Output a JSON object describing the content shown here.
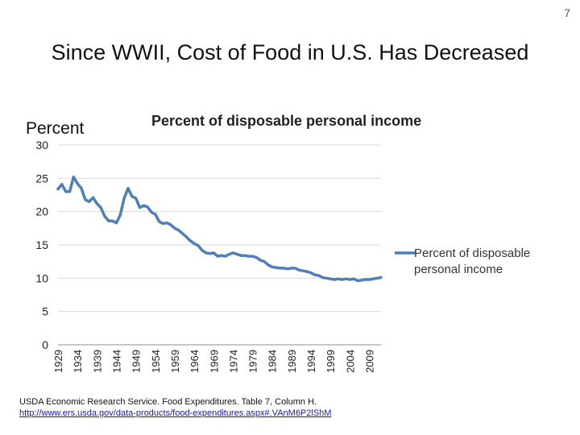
{
  "page_number": "7",
  "slide_title": "Since WWII, Cost of Food in U.S. Has Decreased",
  "y_unit_label": "Percent",
  "source": {
    "line1": "USDA Economic Research Service. Food Expenditures. Table 7, Column H.",
    "link": "http://www.ers.usda.gov/data-products/food-expenditures.aspx#.VAnM6P2lShM"
  },
  "colors": {
    "series": "#4f7fb8",
    "grid": "#d9d9d9"
  },
  "chart_data": {
    "type": "line",
    "title": "Percent of disposable personal income",
    "xlabel": "",
    "ylabel": "Percent",
    "ylim": [
      0,
      30
    ],
    "yticks": [
      0,
      5,
      10,
      15,
      20,
      25,
      30
    ],
    "xlim": [
      1929,
      2012
    ],
    "xticks": [
      1929,
      1934,
      1939,
      1944,
      1949,
      1954,
      1959,
      1964,
      1969,
      1974,
      1979,
      1984,
      1989,
      1994,
      1999,
      2004,
      2009
    ],
    "legend": "right",
    "series": [
      {
        "name": "Percent of disposable personal income",
        "x": [
          1929,
          1930,
          1931,
          1932,
          1933,
          1934,
          1935,
          1936,
          1937,
          1938,
          1939,
          1940,
          1941,
          1942,
          1943,
          1944,
          1945,
          1946,
          1947,
          1948,
          1949,
          1950,
          1951,
          1952,
          1953,
          1954,
          1955,
          1956,
          1957,
          1958,
          1959,
          1960,
          1961,
          1962,
          1963,
          1964,
          1965,
          1966,
          1967,
          1968,
          1969,
          1970,
          1971,
          1972,
          1973,
          1974,
          1975,
          1976,
          1977,
          1978,
          1979,
          1980,
          1981,
          1982,
          1983,
          1984,
          1985,
          1986,
          1987,
          1988,
          1989,
          1990,
          1991,
          1992,
          1993,
          1994,
          1995,
          1996,
          1997,
          1998,
          1999,
          2000,
          2001,
          2002,
          2003,
          2004,
          2005,
          2006,
          2007,
          2008,
          2009,
          2010,
          2011,
          2012
        ],
        "values": [
          23.4,
          24.1,
          23.0,
          23.0,
          25.2,
          24.2,
          23.5,
          21.8,
          21.5,
          22.1,
          21.2,
          20.6,
          19.3,
          18.6,
          18.6,
          18.3,
          19.5,
          22.0,
          23.5,
          22.3,
          22.0,
          20.6,
          20.9,
          20.7,
          19.9,
          19.6,
          18.5,
          18.2,
          18.3,
          18.0,
          17.5,
          17.2,
          16.7,
          16.2,
          15.6,
          15.2,
          14.9,
          14.2,
          13.8,
          13.7,
          13.8,
          13.3,
          13.4,
          13.3,
          13.6,
          13.8,
          13.6,
          13.4,
          13.4,
          13.3,
          13.3,
          13.1,
          12.7,
          12.5,
          12.0,
          11.7,
          11.6,
          11.5,
          11.5,
          11.4,
          11.5,
          11.5,
          11.2,
          11.1,
          11.0,
          10.8,
          10.5,
          10.4,
          10.1,
          10.0,
          9.9,
          9.8,
          9.9,
          9.8,
          9.9,
          9.8,
          9.9,
          9.6,
          9.7,
          9.8,
          9.8,
          9.9,
          10.0,
          10.1
        ]
      }
    ]
  }
}
